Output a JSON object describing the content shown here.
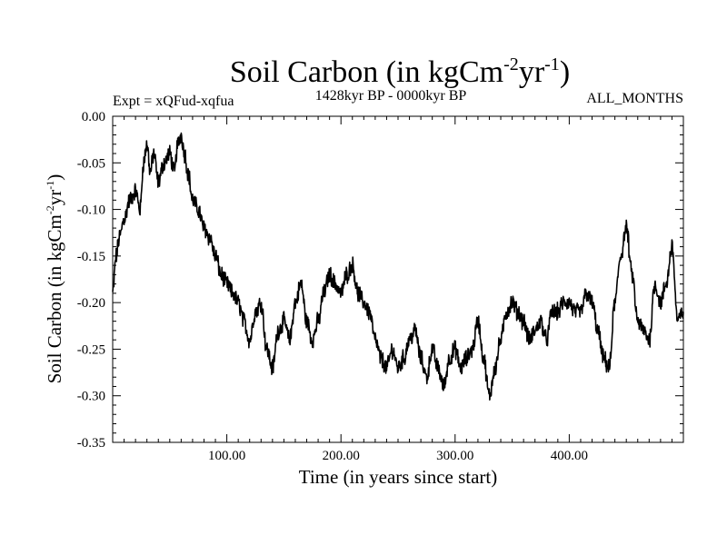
{
  "chart_data": {
    "type": "line",
    "title": {
      "main": "Soil Carbon (in kgCm",
      "sup1": "-2",
      "mid": "yr",
      "sup2": "-1",
      "end": ")"
    },
    "subtitle_left": "Expt = xQFud-xqfua",
    "subtitle_center": "1428kyr BP - 0000kyr BP",
    "subtitle_right": "ALL_MONTHS",
    "xlabel": "Time (in years since start)",
    "ylabel": {
      "main": "Soil Carbon (in kgCm",
      "sup1": "-2",
      "mid": "yr",
      "sup2": "-1",
      "end": ")"
    },
    "xlim": [
      0,
      500
    ],
    "ylim": [
      -0.35,
      0.0
    ],
    "x_ticks": [
      {
        "value": 100,
        "label": "100.00"
      },
      {
        "value": 200,
        "label": "200.00"
      },
      {
        "value": 300,
        "label": "300.00"
      },
      {
        "value": 400,
        "label": "400.00"
      }
    ],
    "y_ticks": [
      {
        "value": 0.0,
        "label": "0.00"
      },
      {
        "value": -0.05,
        "label": "-0.05"
      },
      {
        "value": -0.1,
        "label": "-0.10"
      },
      {
        "value": -0.15,
        "label": "-0.15"
      },
      {
        "value": -0.2,
        "label": "-0.20"
      },
      {
        "value": -0.25,
        "label": "-0.25"
      },
      {
        "value": -0.3,
        "label": "-0.30"
      },
      {
        "value": -0.35,
        "label": "-0.35"
      }
    ],
    "series": [
      {
        "name": "Soil Carbon",
        "color": "#000000",
        "x": [
          0,
          3,
          6,
          10,
          15,
          20,
          24,
          27,
          30,
          33,
          36,
          40,
          45,
          50,
          54,
          57,
          60,
          63,
          66,
          70,
          75,
          80,
          85,
          90,
          95,
          100,
          105,
          110,
          115,
          120,
          125,
          130,
          135,
          140,
          145,
          150,
          155,
          160,
          165,
          170,
          175,
          180,
          185,
          190,
          195,
          200,
          205,
          210,
          215,
          220,
          225,
          230,
          235,
          240,
          245,
          250,
          255,
          260,
          265,
          270,
          275,
          280,
          285,
          290,
          295,
          300,
          305,
          310,
          315,
          320,
          325,
          330,
          335,
          340,
          345,
          350,
          355,
          360,
          365,
          370,
          375,
          380,
          385,
          390,
          395,
          400,
          405,
          410,
          415,
          420,
          425,
          430,
          435,
          440,
          445,
          450,
          455,
          460,
          465,
          470,
          475,
          480,
          485,
          490,
          495,
          500
        ],
        "y": [
          -0.19,
          -0.15,
          -0.13,
          -0.11,
          -0.09,
          -0.08,
          -0.1,
          -0.05,
          -0.03,
          -0.06,
          -0.04,
          -0.07,
          -0.05,
          -0.04,
          -0.06,
          -0.03,
          -0.02,
          -0.04,
          -0.06,
          -0.09,
          -0.1,
          -0.12,
          -0.13,
          -0.15,
          -0.17,
          -0.18,
          -0.19,
          -0.2,
          -0.22,
          -0.24,
          -0.21,
          -0.2,
          -0.25,
          -0.27,
          -0.23,
          -0.22,
          -0.24,
          -0.2,
          -0.18,
          -0.22,
          -0.24,
          -0.22,
          -0.19,
          -0.17,
          -0.18,
          -0.19,
          -0.17,
          -0.16,
          -0.19,
          -0.2,
          -0.21,
          -0.24,
          -0.26,
          -0.27,
          -0.25,
          -0.27,
          -0.26,
          -0.24,
          -0.23,
          -0.26,
          -0.28,
          -0.25,
          -0.27,
          -0.29,
          -0.26,
          -0.25,
          -0.27,
          -0.26,
          -0.25,
          -0.22,
          -0.26,
          -0.3,
          -0.27,
          -0.24,
          -0.21,
          -0.2,
          -0.21,
          -0.22,
          -0.24,
          -0.23,
          -0.22,
          -0.24,
          -0.21,
          -0.21,
          -0.2,
          -0.2,
          -0.21,
          -0.21,
          -0.19,
          -0.2,
          -0.23,
          -0.26,
          -0.27,
          -0.2,
          -0.15,
          -0.12,
          -0.17,
          -0.22,
          -0.23,
          -0.24,
          -0.18,
          -0.2,
          -0.18,
          -0.14,
          -0.22,
          -0.21
        ]
      }
    ]
  }
}
